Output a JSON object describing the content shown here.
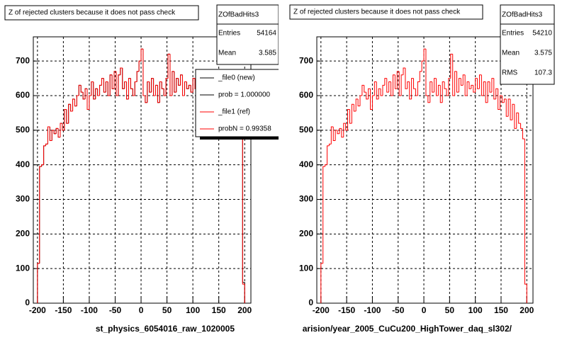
{
  "chart_data": [
    {
      "type": "histogram",
      "title": "Z of rejected clusters  because it does not pass check",
      "xlabel": "st_physics_6054016_raw_1020005",
      "stats": {
        "name": "ZOfBadHits3",
        "rows": [
          [
            "Entries",
            54164
          ],
          [
            "Mean",
            3.585
          ]
        ]
      },
      "legend_notes": [
        "prob = 1.000000",
        "probN = 0.99358"
      ],
      "bins": [
        -200,
        -196,
        -192,
        -188,
        -184,
        -180,
        -176,
        -172,
        -168,
        -164,
        -160,
        -156,
        -152,
        -148,
        -144,
        -140,
        -136,
        -132,
        -128,
        -124,
        -120,
        -116,
        -112,
        -108,
        -104,
        -100,
        -96,
        -92,
        -88,
        -84,
        -80,
        -76,
        -72,
        -68,
        -64,
        -60,
        -56,
        -52,
        -48,
        -44,
        -40,
        -36,
        -32,
        -28,
        -24,
        -20,
        -16,
        -12,
        -8,
        -4,
        0,
        4,
        8,
        12,
        16,
        20,
        24,
        28,
        32,
        36,
        40,
        44,
        48,
        52,
        56,
        60,
        64,
        68,
        72,
        76,
        80,
        84,
        88,
        92,
        96,
        100,
        104,
        108,
        112,
        116,
        120,
        124,
        128,
        132,
        136,
        140,
        144,
        148,
        152,
        156,
        160,
        164,
        168,
        172,
        176,
        180,
        184,
        188,
        192,
        196,
        200
      ],
      "series": [
        {
          "name": "_file0 (new)",
          "color": "#000000",
          "values": [
            115,
            395,
            400,
            455,
            460,
            510,
            470,
            500,
            490,
            505,
            480,
            520,
            500,
            560,
            520,
            575,
            555,
            590,
            570,
            600,
            630,
            610,
            590,
            620,
            560,
            600,
            640,
            590,
            620,
            600,
            630,
            650,
            610,
            640,
            600,
            660,
            620,
            670,
            600,
            660,
            680,
            620,
            640,
            590,
            650,
            620,
            600,
            640,
            670,
            700,
            735,
            600,
            580,
            640,
            610,
            650,
            600,
            630,
            580,
            640,
            620,
            600,
            650,
            720,
            600,
            670,
            610,
            650,
            630,
            660,
            600,
            640,
            620,
            630,
            610,
            650,
            620,
            660,
            600,
            640,
            580,
            640,
            610,
            650,
            590,
            620,
            560,
            600,
            580,
            590,
            540,
            600,
            520,
            580,
            500,
            545,
            525,
            500,
            480,
            60
          ]
        },
        {
          "name": "_file1 (ref)",
          "color": "#ff0000",
          "values": [
            115,
            395,
            400,
            455,
            460,
            510,
            470,
            500,
            490,
            505,
            480,
            520,
            500,
            560,
            520,
            575,
            555,
            590,
            570,
            600,
            630,
            610,
            590,
            620,
            560,
            600,
            640,
            590,
            620,
            600,
            630,
            650,
            610,
            640,
            600,
            660,
            620,
            670,
            600,
            660,
            680,
            620,
            640,
            590,
            650,
            620,
            600,
            640,
            670,
            700,
            735,
            600,
            580,
            640,
            610,
            650,
            600,
            630,
            580,
            640,
            620,
            600,
            650,
            720,
            600,
            670,
            610,
            650,
            630,
            660,
            600,
            640,
            620,
            630,
            610,
            650,
            620,
            660,
            600,
            640,
            580,
            640,
            610,
            650,
            590,
            620,
            560,
            600,
            580,
            590,
            540,
            590,
            530,
            575,
            505,
            550,
            520,
            505,
            475,
            55
          ]
        }
      ],
      "xlim": [
        -208,
        212
      ],
      "ylim": [
        0,
        770
      ],
      "xticks": [
        -200,
        -150,
        -100,
        -50,
        0,
        50,
        100,
        150,
        200
      ],
      "yticks": [
        0,
        100,
        200,
        300,
        400,
        500,
        600,
        700
      ],
      "grid": true
    },
    {
      "type": "histogram",
      "title": "Z of rejected clusters  because it does not pass check",
      "xlabel": "arision/year_2005_CuCu200_HighTower_daq_sl302/",
      "stats": {
        "name": "ZOfBadHits3",
        "rows": [
          [
            "Entries",
            54210
          ],
          [
            "Mean",
            3.575
          ],
          [
            "RMS",
            107.3
          ]
        ]
      },
      "bins": [
        -200,
        -196,
        -192,
        -188,
        -184,
        -180,
        -176,
        -172,
        -168,
        -164,
        -160,
        -156,
        -152,
        -148,
        -144,
        -140,
        -136,
        -132,
        -128,
        -124,
        -120,
        -116,
        -112,
        -108,
        -104,
        -100,
        -96,
        -92,
        -88,
        -84,
        -80,
        -76,
        -72,
        -68,
        -64,
        -60,
        -56,
        -52,
        -48,
        -44,
        -40,
        -36,
        -32,
        -28,
        -24,
        -20,
        -16,
        -12,
        -8,
        -4,
        0,
        4,
        8,
        12,
        16,
        20,
        24,
        28,
        32,
        36,
        40,
        44,
        48,
        52,
        56,
        60,
        64,
        68,
        72,
        76,
        80,
        84,
        88,
        92,
        96,
        100,
        104,
        108,
        112,
        116,
        120,
        124,
        128,
        132,
        136,
        140,
        144,
        148,
        152,
        156,
        160,
        164,
        168,
        172,
        176,
        180,
        184,
        188,
        192,
        196,
        200
      ],
      "series": [
        {
          "name": "ZOfBadHits3",
          "color": "#ff0000",
          "values": [
            115,
            395,
            400,
            455,
            460,
            510,
            470,
            500,
            490,
            505,
            480,
            520,
            500,
            560,
            520,
            575,
            555,
            590,
            570,
            600,
            630,
            610,
            590,
            620,
            560,
            600,
            640,
            590,
            620,
            600,
            630,
            650,
            610,
            640,
            600,
            660,
            620,
            670,
            600,
            660,
            680,
            620,
            640,
            590,
            650,
            620,
            600,
            640,
            670,
            700,
            735,
            600,
            580,
            640,
            610,
            650,
            600,
            630,
            580,
            640,
            620,
            600,
            650,
            720,
            600,
            670,
            610,
            650,
            630,
            660,
            600,
            640,
            620,
            630,
            610,
            650,
            620,
            660,
            600,
            640,
            580,
            640,
            610,
            650,
            590,
            620,
            560,
            600,
            580,
            590,
            540,
            590,
            530,
            575,
            505,
            550,
            520,
            505,
            475,
            55
          ]
        }
      ],
      "xlim": [
        -208,
        212
      ],
      "ylim": [
        0,
        770
      ],
      "xticks": [
        -200,
        -150,
        -100,
        -50,
        0,
        50,
        100,
        150,
        200
      ],
      "yticks": [
        0,
        100,
        200,
        300,
        400,
        500,
        600,
        700
      ],
      "grid": true
    }
  ]
}
